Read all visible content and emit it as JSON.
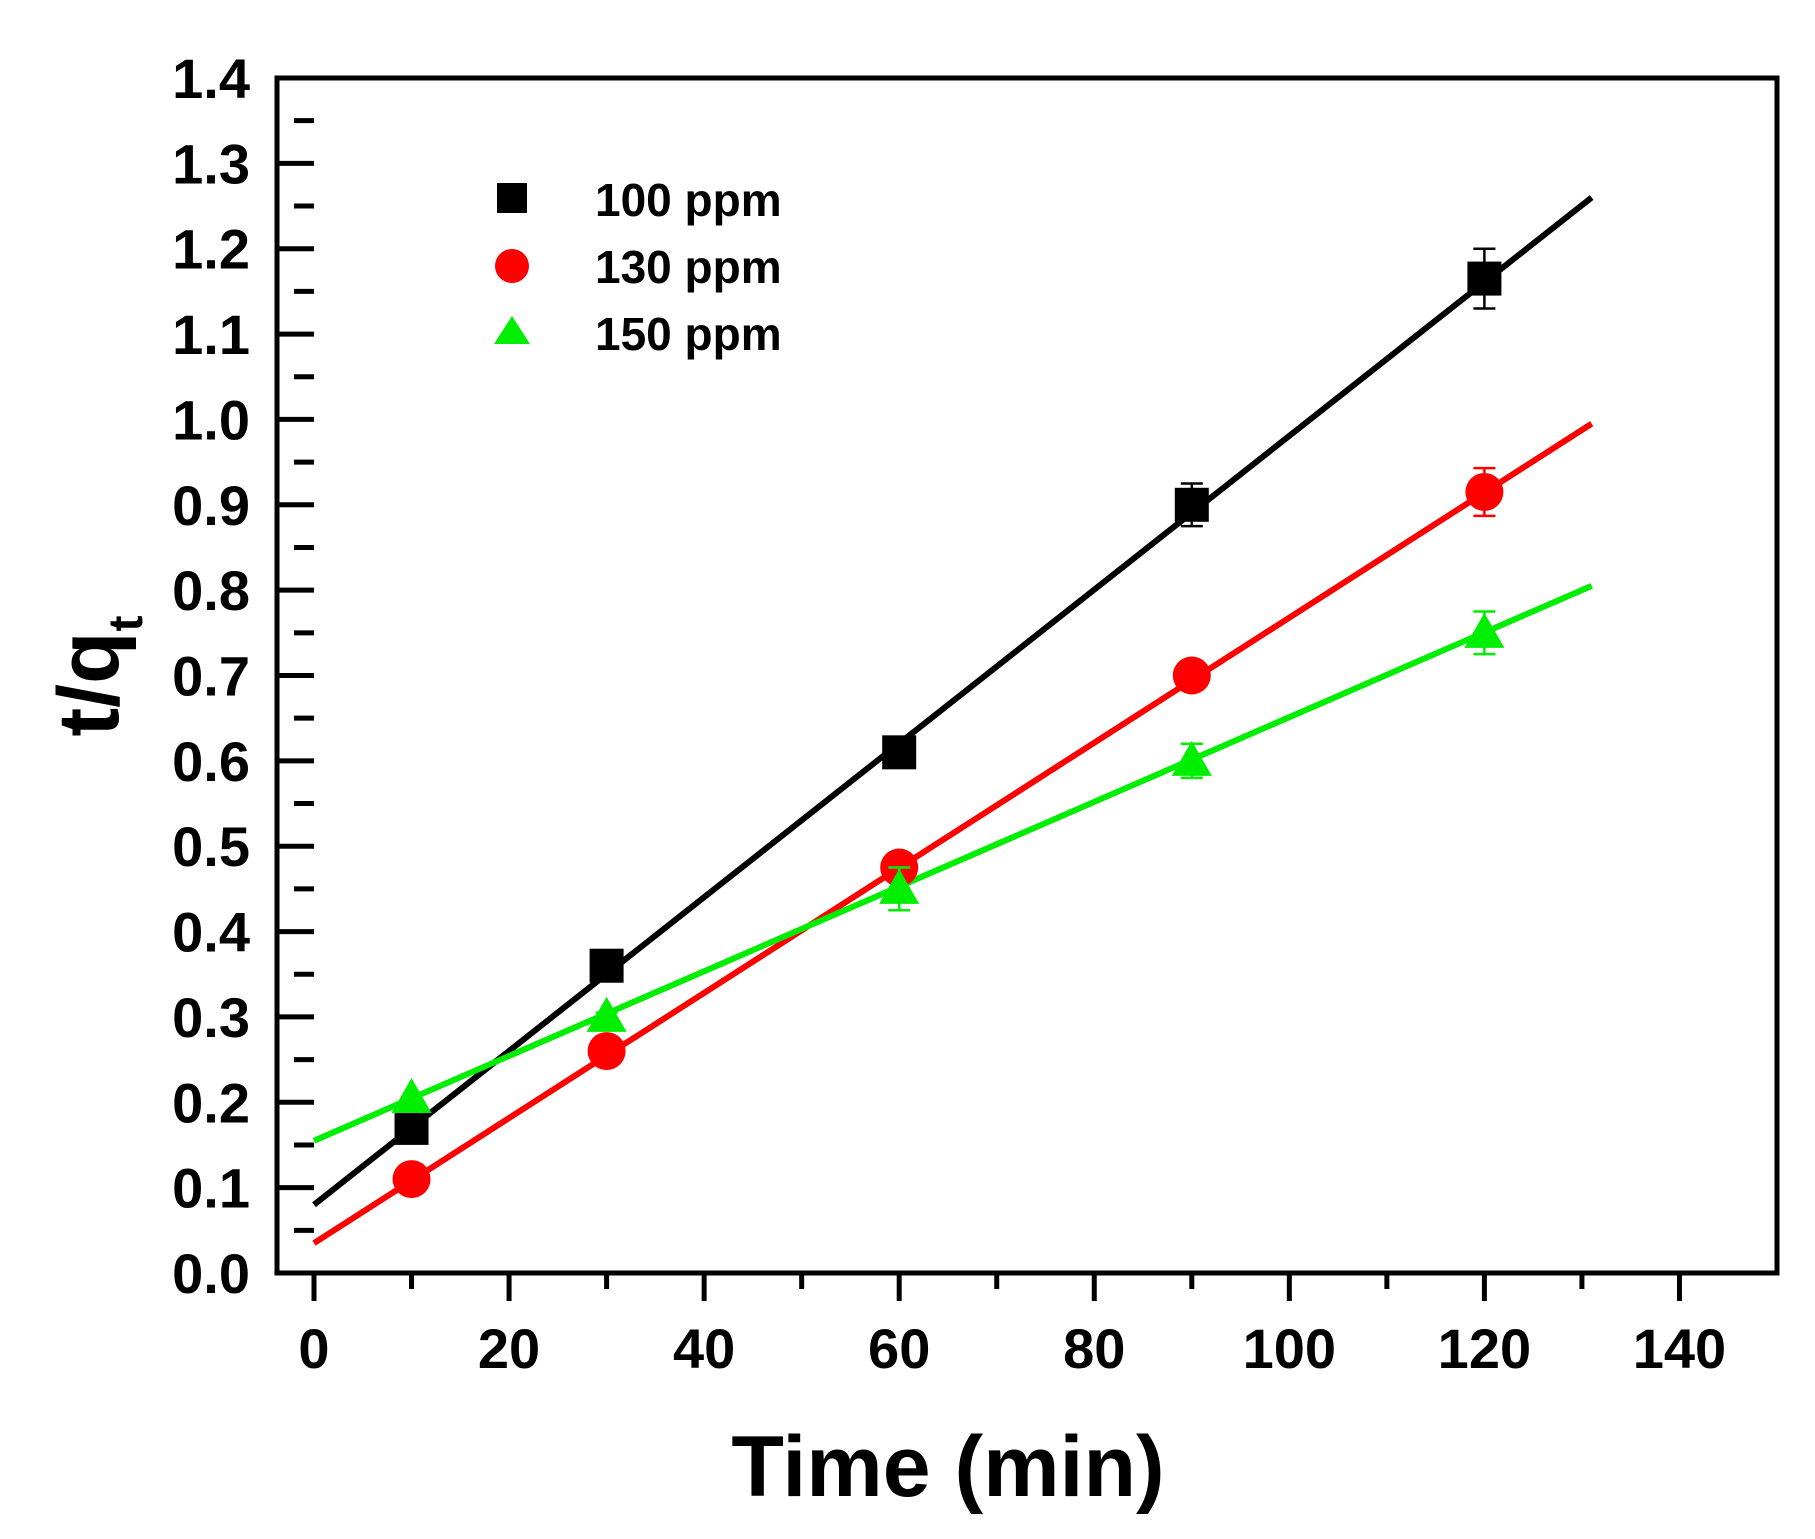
{
  "chart_data": {
    "type": "scatter",
    "xlabel": "Time (min)",
    "ylabel_main": "t/q",
    "ylabel_sub": "t",
    "xlim": [
      0,
      150
    ],
    "ylim": [
      0,
      1.4
    ],
    "x_ticks": [
      "0",
      "20",
      "40",
      "60",
      "80",
      "100",
      "120",
      "140"
    ],
    "y_ticks": [
      "0.0",
      "0.1",
      "0.2",
      "0.3",
      "0.4",
      "0.5",
      "0.6",
      "0.7",
      "0.8",
      "0.9",
      "1.0",
      "1.1",
      "1.2",
      "1.3",
      "1.4"
    ],
    "grid": false,
    "legend_position": "top-left",
    "series": [
      {
        "name": "100 ppm",
        "marker": "square",
        "color": "#000000",
        "x": [
          10,
          30,
          60,
          90,
          120
        ],
        "y": [
          0.17,
          0.36,
          0.61,
          0.9,
          1.165
        ],
        "error": [
          0.0,
          0.01,
          0.01,
          0.025,
          0.035
        ],
        "fit_line": {
          "x": [
            0,
            131
          ],
          "y": [
            0.08,
            1.26
          ]
        }
      },
      {
        "name": "130 ppm",
        "marker": "circle",
        "color": "#ff0000",
        "x": [
          10,
          30,
          60,
          90,
          120
        ],
        "y": [
          0.11,
          0.26,
          0.475,
          0.7,
          0.915
        ],
        "error": [
          0.0,
          0.005,
          0.01,
          0.015,
          0.028
        ],
        "fit_line": {
          "x": [
            0,
            131
          ],
          "y": [
            0.035,
            0.995
          ]
        }
      },
      {
        "name": "150 ppm",
        "marker": "triangle",
        "color": "#00ee00",
        "x": [
          10,
          30,
          60,
          90,
          120
        ],
        "y": [
          0.205,
          0.3,
          0.45,
          0.6,
          0.75
        ],
        "error": [
          0.0,
          0.005,
          0.025,
          0.02,
          0.025
        ],
        "fit_line": {
          "x": [
            0,
            131
          ],
          "y": [
            0.155,
            0.805
          ]
        }
      }
    ]
  }
}
